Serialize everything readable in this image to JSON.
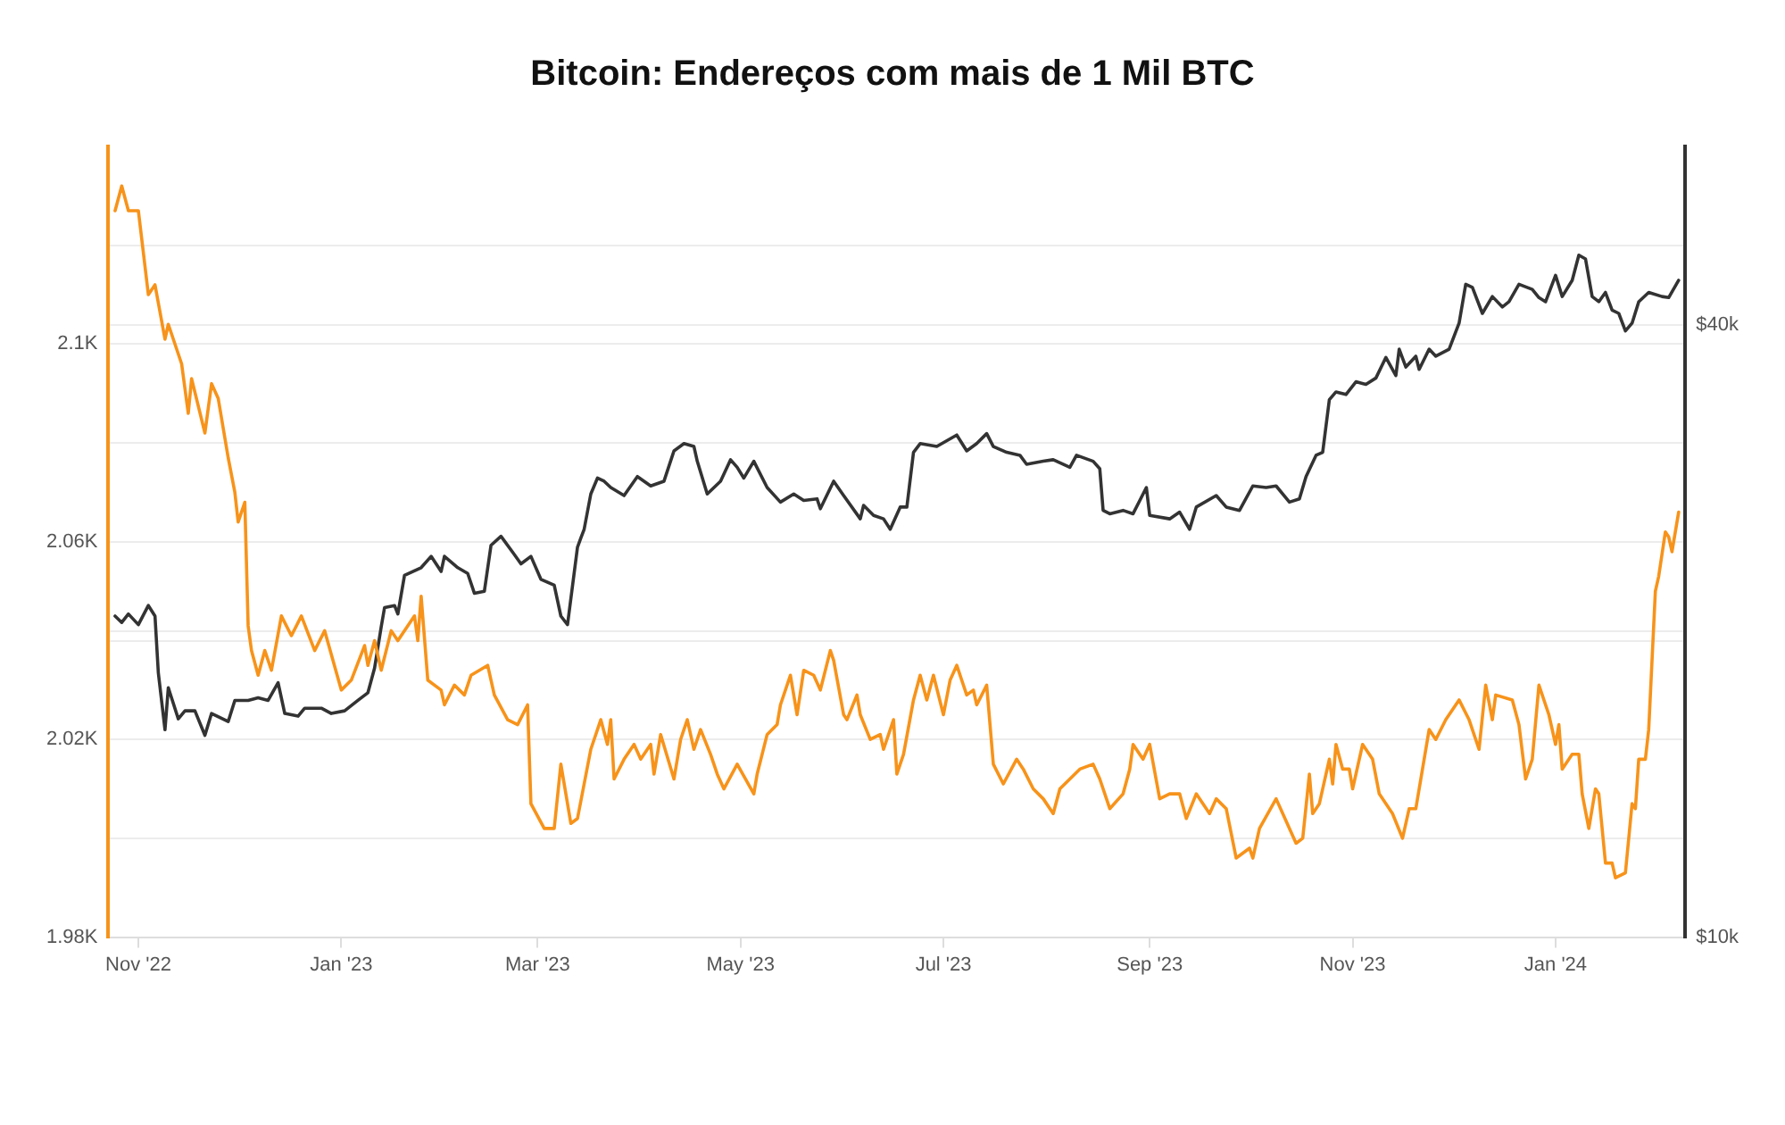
{
  "chart_data": {
    "type": "line",
    "title": "Bitcoin: Endereços com mais de 1 Mil BTC",
    "xlim": [
      "2022-10-23",
      "2024-02-09"
    ],
    "xticks": [
      {
        "value": "2022-11-01",
        "label": "Nov '22"
      },
      {
        "value": "2023-01-01",
        "label": "Jan '23"
      },
      {
        "value": "2023-03-01",
        "label": "Mar '23"
      },
      {
        "value": "2023-05-01",
        "label": "May '23"
      },
      {
        "value": "2023-07-01",
        "label": "Jul '23"
      },
      {
        "value": "2023-09-01",
        "label": "Sep '23"
      },
      {
        "value": "2023-11-01",
        "label": "Nov '23"
      },
      {
        "value": "2024-01-01",
        "label": "Jan '24"
      }
    ],
    "ylim": [
      1980,
      2140
    ],
    "yticks": [
      {
        "value": 1980,
        "label": "1.98K"
      },
      {
        "value": 2000,
        "label": null
      },
      {
        "value": 2020,
        "label": "2.02K"
      },
      {
        "value": 2040,
        "label": null
      },
      {
        "value": 2060,
        "label": "2.06K"
      },
      {
        "value": 2080,
        "label": null
      },
      {
        "value": 2100,
        "label": "2.1K"
      },
      {
        "value": 2120,
        "label": null
      }
    ],
    "y2lim": [
      10000,
      60000
    ],
    "y2ticks": [
      {
        "value": 10000,
        "label": "$10k"
      },
      {
        "value": 20000,
        "label": null
      },
      {
        "value": 40000,
        "label": "$40k"
      }
    ],
    "log": "y2",
    "grid": "y",
    "legend": false,
    "marker": "none",
    "line_style": "solid",
    "series": [
      {
        "color": "#f7931a",
        "x": [
          "2022-10-25",
          "2022-10-27",
          "2022-10-29",
          "2022-11-01",
          "2022-11-04",
          "2022-11-06",
          "2022-11-09",
          "2022-11-10",
          "2022-11-14",
          "2022-11-16",
          "2022-11-17",
          "2022-11-21",
          "2022-11-23",
          "2022-11-25",
          "2022-11-28",
          "2022-11-30",
          "2022-12-01",
          "2022-12-03",
          "2022-12-04",
          "2022-12-05",
          "2022-12-07",
          "2022-12-09",
          "2022-12-11",
          "2022-12-14",
          "2022-12-17",
          "2022-12-20",
          "2022-12-24",
          "2022-12-27",
          "2023-01-01",
          "2023-01-04",
          "2023-01-08",
          "2023-01-09",
          "2023-01-11",
          "2023-01-13",
          "2023-01-16",
          "2023-01-18",
          "2023-01-23",
          "2023-01-24",
          "2023-01-25",
          "2023-01-27",
          "2023-01-31",
          "2023-02-01",
          "2023-02-04",
          "2023-02-07",
          "2023-02-09",
          "2023-02-14",
          "2023-02-16",
          "2023-02-20",
          "2023-02-23",
          "2023-02-26",
          "2023-02-27",
          "2023-03-03",
          "2023-03-06",
          "2023-03-08",
          "2023-03-11",
          "2023-03-13",
          "2023-03-17",
          "2023-03-20",
          "2023-03-22",
          "2023-03-23",
          "2023-03-24",
          "2023-03-27",
          "2023-03-30",
          "2023-04-01",
          "2023-04-04",
          "2023-04-05",
          "2023-04-07",
          "2023-04-11",
          "2023-04-13",
          "2023-04-15",
          "2023-04-17",
          "2023-04-19",
          "2023-04-22",
          "2023-04-24",
          "2023-04-26",
          "2023-04-30",
          "2023-05-05",
          "2023-05-06",
          "2023-05-09",
          "2023-05-12",
          "2023-05-13",
          "2023-05-16",
          "2023-05-18",
          "2023-05-20",
          "2023-05-23",
          "2023-05-25",
          "2023-05-28",
          "2023-05-29",
          "2023-06-01",
          "2023-06-02",
          "2023-06-05",
          "2023-06-06",
          "2023-06-09",
          "2023-06-12",
          "2023-06-13",
          "2023-06-16",
          "2023-06-17",
          "2023-06-19",
          "2023-06-22",
          "2023-06-24",
          "2023-06-26",
          "2023-06-28",
          "2023-07-01",
          "2023-07-03",
          "2023-07-05",
          "2023-07-08",
          "2023-07-10",
          "2023-07-11",
          "2023-07-14",
          "2023-07-16",
          "2023-07-19",
          "2023-07-23",
          "2023-07-25",
          "2023-07-28",
          "2023-07-31",
          "2023-08-03",
          "2023-08-05",
          "2023-08-08",
          "2023-08-11",
          "2023-08-15",
          "2023-08-17",
          "2023-08-20",
          "2023-08-24",
          "2023-08-26",
          "2023-08-27",
          "2023-08-30",
          "2023-09-01",
          "2023-09-04",
          "2023-09-07",
          "2023-09-10",
          "2023-09-12",
          "2023-09-15",
          "2023-09-19",
          "2023-09-21",
          "2023-09-24",
          "2023-09-27",
          "2023-10-01",
          "2023-10-02",
          "2023-10-04",
          "2023-10-09",
          "2023-10-11",
          "2023-10-15",
          "2023-10-17",
          "2023-10-19",
          "2023-10-20",
          "2023-10-22",
          "2023-10-25",
          "2023-10-26",
          "2023-10-27",
          "2023-10-29",
          "2023-10-31",
          "2023-11-01",
          "2023-11-04",
          "2023-11-07",
          "2023-11-09",
          "2023-11-13",
          "2023-11-16",
          "2023-11-18",
          "2023-11-20",
          "2023-11-24",
          "2023-11-26",
          "2023-11-29",
          "2023-12-03",
          "2023-12-06",
          "2023-12-09",
          "2023-12-11",
          "2023-12-13",
          "2023-12-14",
          "2023-12-19",
          "2023-12-21",
          "2023-12-23",
          "2023-12-25",
          "2023-12-27",
          "2023-12-30",
          "2024-01-01",
          "2024-01-02",
          "2024-01-03",
          "2024-01-06",
          "2024-01-08",
          "2024-01-09",
          "2024-01-11",
          "2024-01-13",
          "2024-01-14",
          "2024-01-16",
          "2024-01-18",
          "2024-01-19",
          "2024-01-22",
          "2024-01-24",
          "2024-01-25",
          "2024-01-26",
          "2024-01-28",
          "2024-01-29",
          "2024-01-31",
          "2024-02-01",
          "2024-02-03",
          "2024-02-04",
          "2024-02-05",
          "2024-02-07"
        ],
        "values": [
          2127,
          2132,
          2127,
          2127,
          2110,
          2112,
          2101,
          2104,
          2096,
          2086,
          2093,
          2082,
          2092,
          2089,
          2077,
          2070,
          2064,
          2068,
          2043,
          2038,
          2033,
          2038,
          2034,
          2045,
          2041,
          2045,
          2038,
          2042,
          2030,
          2032,
          2039,
          2035,
          2040,
          2034,
          2042,
          2040,
          2045,
          2040,
          2049,
          2032,
          2030,
          2027,
          2031,
          2029,
          2033,
          2035,
          2029,
          2024,
          2023,
          2027,
          2007,
          2002,
          2002,
          2015,
          2003,
          2004,
          2018,
          2024,
          2019,
          2024,
          2012,
          2016,
          2019,
          2016,
          2019,
          2013,
          2021,
          2012,
          2020,
          2024,
          2018,
          2022,
          2017,
          2013,
          2010,
          2015,
          2009,
          2013,
          2021,
          2023,
          2027,
          2033,
          2025,
          2034,
          2033,
          2030,
          2038,
          2036,
          2025,
          2024,
          2029,
          2025,
          2020,
          2021,
          2018,
          2024,
          2013,
          2017,
          2028,
          2033,
          2028,
          2033,
          2025,
          2032,
          2035,
          2029,
          2030,
          2027,
          2031,
          2015,
          2011,
          2016,
          2014,
          2010,
          2008,
          2005,
          2010,
          2012,
          2014,
          2015,
          2012,
          2006,
          2009,
          2014,
          2019,
          2016,
          2019,
          2008,
          2009,
          2009,
          2004,
          2009,
          2005,
          2008,
          2006,
          1996,
          1998,
          1996,
          2002,
          2008,
          2005,
          1999,
          2000,
          2013,
          2005,
          2007,
          2016,
          2011,
          2019,
          2014,
          2014,
          2010,
          2019,
          2016,
          2009,
          2005,
          2000,
          2006,
          2006,
          2022,
          2020,
          2024,
          2028,
          2024,
          2018,
          2031,
          2024,
          2029,
          2028,
          2023,
          2012,
          2016,
          2031,
          2025,
          2019,
          2023,
          2014,
          2017,
          2017,
          2009,
          2002,
          2010,
          2009,
          1995,
          1995,
          1992,
          1993,
          2007,
          2006,
          2016,
          2016,
          2022,
          2050,
          2053,
          2062,
          2061,
          2058,
          2066
        ]
      },
      {
        "color": "#333333",
        "axis": "y2",
        "x": [
          "2022-10-25",
          "2022-10-27",
          "2022-10-29",
          "2022-11-01",
          "2022-11-04",
          "2022-11-06",
          "2022-11-07",
          "2022-11-09",
          "2022-11-10",
          "2022-11-13",
          "2022-11-15",
          "2022-11-18",
          "2022-11-21",
          "2022-11-23",
          "2022-11-28",
          "2022-11-30",
          "2022-12-04",
          "2022-12-07",
          "2022-12-10",
          "2022-12-13",
          "2022-12-15",
          "2022-12-19",
          "2022-12-21",
          "2022-12-26",
          "2022-12-29",
          "2023-01-02",
          "2023-01-06",
          "2023-01-09",
          "2023-01-11",
          "2023-01-13",
          "2023-01-14",
          "2023-01-17",
          "2023-01-18",
          "2023-01-20",
          "2023-01-25",
          "2023-01-28",
          "2023-01-31",
          "2023-02-01",
          "2023-02-05",
          "2023-02-08",
          "2023-02-10",
          "2023-02-13",
          "2023-02-15",
          "2023-02-18",
          "2023-02-22",
          "2023-02-24",
          "2023-02-27",
          "2023-03-02",
          "2023-03-06",
          "2023-03-08",
          "2023-03-10",
          "2023-03-13",
          "2023-03-14",
          "2023-03-15",
          "2023-03-17",
          "2023-03-19",
          "2023-03-21",
          "2023-03-23",
          "2023-03-27",
          "2023-03-31",
          "2023-04-04",
          "2023-04-08",
          "2023-04-11",
          "2023-04-14",
          "2023-04-17",
          "2023-04-18",
          "2023-04-21",
          "2023-04-25",
          "2023-04-28",
          "2023-04-30",
          "2023-05-02",
          "2023-05-05",
          "2023-05-09",
          "2023-05-13",
          "2023-05-17",
          "2023-05-20",
          "2023-05-24",
          "2023-05-25",
          "2023-05-29",
          "2023-06-01",
          "2023-06-06",
          "2023-06-07",
          "2023-06-10",
          "2023-06-13",
          "2023-06-15",
          "2023-06-18",
          "2023-06-20",
          "2023-06-22",
          "2023-06-24",
          "2023-06-29",
          "2023-07-05",
          "2023-07-08",
          "2023-07-11",
          "2023-07-14",
          "2023-07-16",
          "2023-07-20",
          "2023-07-24",
          "2023-07-26",
          "2023-07-31",
          "2023-08-03",
          "2023-08-08",
          "2023-08-10",
          "2023-08-15",
          "2023-08-17",
          "2023-08-18",
          "2023-08-20",
          "2023-08-24",
          "2023-08-27",
          "2023-08-31",
          "2023-09-01",
          "2023-09-07",
          "2023-09-10",
          "2023-09-13",
          "2023-09-15",
          "2023-09-21",
          "2023-09-24",
          "2023-09-28",
          "2023-10-02",
          "2023-10-06",
          "2023-10-09",
          "2023-10-13",
          "2023-10-16",
          "2023-10-18",
          "2023-10-21",
          "2023-10-23",
          "2023-10-25",
          "2023-10-27",
          "2023-10-30",
          "2023-11-02",
          "2023-11-05",
          "2023-11-08",
          "2023-11-11",
          "2023-11-14",
          "2023-11-15",
          "2023-11-17",
          "2023-11-20",
          "2023-11-21",
          "2023-11-24",
          "2023-11-26",
          "2023-11-30",
          "2023-12-03",
          "2023-12-05",
          "2023-12-07",
          "2023-12-10",
          "2023-12-13",
          "2023-12-16",
          "2023-12-18",
          "2023-12-21",
          "2023-12-25",
          "2023-12-27",
          "2023-12-29",
          "2024-01-01",
          "2024-01-03",
          "2024-01-06",
          "2024-01-08",
          "2024-01-10",
          "2024-01-12",
          "2024-01-14",
          "2024-01-16",
          "2024-01-18",
          "2024-01-20",
          "2024-01-22",
          "2024-01-24",
          "2024-01-26",
          "2024-01-29",
          "2024-02-02",
          "2024-02-04",
          "2024-02-07"
        ],
        "values": [
          20700,
          20400,
          20800,
          20300,
          21200,
          20700,
          18200,
          16000,
          17600,
          16400,
          16700,
          16700,
          15800,
          16600,
          16300,
          17100,
          17100,
          17200,
          17100,
          17800,
          16600,
          16500,
          16800,
          16800,
          16600,
          16700,
          17100,
          17400,
          18400,
          20200,
          21100,
          21200,
          20800,
          22700,
          23100,
          23700,
          22900,
          23700,
          23100,
          22800,
          21800,
          21900,
          24300,
          24800,
          23800,
          23300,
          23700,
          22500,
          22200,
          20700,
          20300,
          24200,
          24700,
          25200,
          27300,
          28300,
          28100,
          27700,
          27200,
          28400,
          27800,
          28100,
          30100,
          30600,
          30400,
          29400,
          27300,
          28100,
          29500,
          29000,
          28300,
          29400,
          27700,
          26800,
          27300,
          26900,
          27000,
          26400,
          28100,
          27200,
          25800,
          26600,
          26000,
          25800,
          25200,
          26500,
          26500,
          30000,
          30600,
          30400,
          31200,
          30100,
          30600,
          31300,
          30400,
          30000,
          29800,
          29200,
          29400,
          29500,
          29000,
          29800,
          29400,
          28900,
          26300,
          26100,
          26300,
          26100,
          27700,
          26000,
          25800,
          26200,
          25200,
          26500,
          27200,
          26500,
          26300,
          27800,
          27700,
          27800,
          26800,
          27000,
          28400,
          29800,
          30000,
          33800,
          34400,
          34200,
          35200,
          35000,
          35500,
          37200,
          35700,
          37900,
          36400,
          37300,
          36200,
          37900,
          37300,
          37900,
          40200,
          43900,
          43600,
          41100,
          42700,
          41700,
          42200,
          43900,
          43400,
          42600,
          42200,
          44800,
          42700,
          44300,
          46900,
          46500,
          42700,
          42200,
          43100,
          41400,
          41100,
          39500,
          40200,
          42200,
          43100,
          42700,
          42600,
          44300
        ]
      }
    ]
  }
}
